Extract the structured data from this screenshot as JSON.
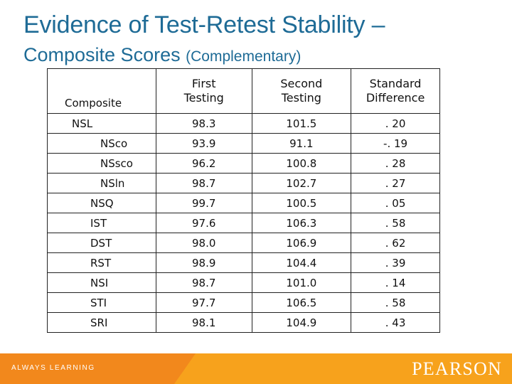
{
  "title_line1": "Evidence of Test-Retest Stability –",
  "title_line2": "Composite Scores",
  "title_line2_sub": "(Complementary)",
  "table": {
    "headers": {
      "composite": "Composite",
      "first_l1": "First",
      "first_l2": "Testing",
      "second_l1": "Second",
      "second_l2": "Testing",
      "std_l1": "Standard",
      "std_l2": "Difference"
    },
    "rows": [
      {
        "composite": "NSL",
        "first": "98.3",
        "second": "101.5",
        "diff": ". 20",
        "indent": 1
      },
      {
        "composite": "NSco",
        "first": "93.9",
        "second": "91.1",
        "diff": "-. 19",
        "indent": 2
      },
      {
        "composite": "NSsco",
        "first": "96.2",
        "second": "100.8",
        "diff": ". 28",
        "indent": 2
      },
      {
        "composite": "NSln",
        "first": "98.7",
        "second": "102.7",
        "diff": ". 27",
        "indent": 2
      },
      {
        "composite": "NSQ",
        "first": "99.7",
        "second": "100.5",
        "diff": ". 05",
        "indent": 0
      },
      {
        "composite": "IST",
        "first": "97.6",
        "second": "106.3",
        "diff": ". 58",
        "indent": 0
      },
      {
        "composite": "DST",
        "first": "98.0",
        "second": "106.9",
        "diff": ". 62",
        "indent": 0
      },
      {
        "composite": "RST",
        "first": "98.9",
        "second": "104.4",
        "diff": ". 39",
        "indent": 0
      },
      {
        "composite": "NSI",
        "first": "98.7",
        "second": "101.0",
        "diff": ". 14",
        "indent": 0
      },
      {
        "composite": "STI",
        "first": "97.7",
        "second": "106.5",
        "diff": ". 58",
        "indent": 0
      },
      {
        "composite": "SRI",
        "first": "98.1",
        "second": "104.9",
        "diff": ". 43",
        "indent": 0
      }
    ]
  },
  "footer": {
    "tagline": "ALWAYS LEARNING",
    "brand": "PEARSON"
  },
  "colors": {
    "title": "#1e6b96",
    "footer_bg": "#f7a21c",
    "footer_wedge": "#f2881c"
  }
}
